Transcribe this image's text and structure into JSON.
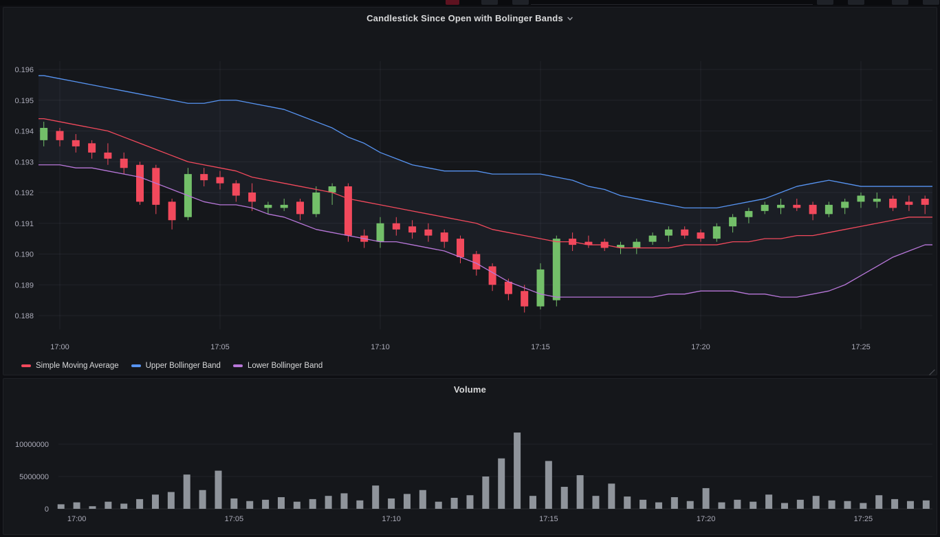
{
  "chart_data": [
    {
      "type": "candlestick",
      "title": "Candlestick Since Open with Bolinger Bands",
      "x_ticks": [
        "17:00",
        "17:05",
        "17:10",
        "17:15",
        "17:20",
        "17:25"
      ],
      "y_ticks": [
        0.188,
        0.189,
        0.19,
        0.191,
        0.192,
        0.193,
        0.194,
        0.195,
        0.196
      ],
      "ylim": [
        0.1875,
        0.1965
      ],
      "grid": true,
      "legend_position": "bottom-left",
      "candle_up_color": "#73bf69",
      "candle_down_color": "#f2495c",
      "band_fill": "rgba(140,165,220,0.055)",
      "candle_format": [
        "time",
        "open",
        "high",
        "low",
        "close"
      ],
      "candles": [
        [
          "16:59:30",
          0.1937,
          0.1943,
          0.1935,
          0.1941
        ],
        [
          "17:00:00",
          0.194,
          0.1941,
          0.1935,
          0.1937
        ],
        [
          "17:00:30",
          0.1937,
          0.1939,
          0.1933,
          0.1935
        ],
        [
          "17:01:00",
          0.1936,
          0.1937,
          0.1931,
          0.1933
        ],
        [
          "17:01:30",
          0.1933,
          0.1936,
          0.1929,
          0.1931
        ],
        [
          "17:02:00",
          0.1931,
          0.1933,
          0.1926,
          0.1928
        ],
        [
          "17:02:30",
          0.1929,
          0.193,
          0.1916,
          0.1917
        ],
        [
          "17:03:00",
          0.1928,
          0.1929,
          0.1913,
          0.1916
        ],
        [
          "17:03:30",
          0.1917,
          0.1918,
          0.1908,
          0.1911
        ],
        [
          "17:04:00",
          0.1912,
          0.1928,
          0.1911,
          0.1926
        ],
        [
          "17:04:30",
          0.1926,
          0.1928,
          0.1922,
          0.1924
        ],
        [
          "17:05:00",
          0.1925,
          0.1927,
          0.1921,
          0.1923
        ],
        [
          "17:05:30",
          0.1923,
          0.1924,
          0.1917,
          0.1919
        ],
        [
          "17:06:00",
          0.192,
          0.1923,
          0.1914,
          0.1917
        ],
        [
          "17:06:30",
          0.1915,
          0.1917,
          0.1913,
          0.1916
        ],
        [
          "17:07:00",
          0.1915,
          0.1918,
          0.1914,
          0.1916
        ],
        [
          "17:07:30",
          0.1917,
          0.1918,
          0.1911,
          0.1913
        ],
        [
          "17:08:00",
          0.1913,
          0.1922,
          0.1912,
          0.192
        ],
        [
          "17:08:30",
          0.192,
          0.1923,
          0.1916,
          0.1922
        ],
        [
          "17:09:00",
          0.1922,
          0.1923,
          0.1904,
          0.1906
        ],
        [
          "17:09:30",
          0.1906,
          0.1908,
          0.1902,
          0.1904
        ],
        [
          "17:10:00",
          0.1904,
          0.1912,
          0.1902,
          0.191
        ],
        [
          "17:10:30",
          0.191,
          0.1912,
          0.1906,
          0.1908
        ],
        [
          "17:11:00",
          0.1909,
          0.1911,
          0.1905,
          0.1907
        ],
        [
          "17:11:30",
          0.1908,
          0.191,
          0.1904,
          0.1906
        ],
        [
          "17:12:00",
          0.1907,
          0.1908,
          0.1902,
          0.1904
        ],
        [
          "17:12:30",
          0.1905,
          0.1906,
          0.1897,
          0.1899
        ],
        [
          "17:13:00",
          0.19,
          0.1901,
          0.1893,
          0.1895
        ],
        [
          "17:13:30",
          0.1896,
          0.1897,
          0.1888,
          0.189
        ],
        [
          "17:14:00",
          0.1891,
          0.1892,
          0.1885,
          0.1887
        ],
        [
          "17:14:30",
          0.1888,
          0.189,
          0.1881,
          0.1883
        ],
        [
          "17:15:00",
          0.1883,
          0.1897,
          0.1882,
          0.1895
        ],
        [
          "17:15:30",
          0.1885,
          0.1906,
          0.1883,
          0.1905
        ],
        [
          "17:16:00",
          0.1905,
          0.1907,
          0.1901,
          0.1903
        ],
        [
          "17:16:30",
          0.1904,
          0.1906,
          0.1902,
          0.1903
        ],
        [
          "17:17:00",
          0.1904,
          0.1905,
          0.1901,
          0.1902
        ],
        [
          "17:17:30",
          0.1902,
          0.1904,
          0.19,
          0.1903
        ],
        [
          "17:18:00",
          0.1902,
          0.1905,
          0.19,
          0.1904
        ],
        [
          "17:18:30",
          0.1904,
          0.1907,
          0.1903,
          0.1906
        ],
        [
          "17:19:00",
          0.1906,
          0.1909,
          0.1904,
          0.1908
        ],
        [
          "17:19:30",
          0.1908,
          0.1909,
          0.1905,
          0.1906
        ],
        [
          "17:20:00",
          0.1907,
          0.1908,
          0.1904,
          0.1905
        ],
        [
          "17:20:30",
          0.1905,
          0.191,
          0.1904,
          0.1909
        ],
        [
          "17:21:00",
          0.1909,
          0.1913,
          0.1907,
          0.1912
        ],
        [
          "17:21:30",
          0.1912,
          0.1915,
          0.191,
          0.1914
        ],
        [
          "17:22:00",
          0.1914,
          0.1917,
          0.1913,
          0.1916
        ],
        [
          "17:22:30",
          0.1915,
          0.1918,
          0.1913,
          0.1916
        ],
        [
          "17:23:00",
          0.1916,
          0.1918,
          0.1914,
          0.1915
        ],
        [
          "17:23:30",
          0.1916,
          0.1917,
          0.1911,
          0.1913
        ],
        [
          "17:24:00",
          0.1913,
          0.1917,
          0.1912,
          0.1916
        ],
        [
          "17:24:30",
          0.1915,
          0.1918,
          0.1913,
          0.1917
        ],
        [
          "17:25:00",
          0.1917,
          0.192,
          0.1915,
          0.1919
        ],
        [
          "17:25:30",
          0.1917,
          0.192,
          0.1915,
          0.1918
        ],
        [
          "17:26:00",
          0.1918,
          0.1919,
          0.1914,
          0.1915
        ],
        [
          "17:26:30",
          0.1917,
          0.1919,
          0.1914,
          0.1916
        ],
        [
          "17:27:00",
          0.1918,
          0.1919,
          0.1913,
          0.1916
        ]
      ],
      "series": [
        {
          "name": "Simple Moving Average",
          "color": "#f2495c",
          "values": [
            0.1944,
            0.1943,
            0.1942,
            0.1941,
            0.194,
            0.1938,
            0.1936,
            0.1934,
            0.1932,
            0.193,
            0.1929,
            0.1928,
            0.1927,
            0.1925,
            0.1924,
            0.1923,
            0.1922,
            0.1921,
            0.192,
            0.1918,
            0.1917,
            0.1916,
            0.1915,
            0.1914,
            0.1913,
            0.1912,
            0.1911,
            0.191,
            0.1908,
            0.1907,
            0.1906,
            0.1905,
            0.1904,
            0.1904,
            0.1903,
            0.1903,
            0.1902,
            0.1902,
            0.1902,
            0.1902,
            0.1903,
            0.1903,
            0.1903,
            0.1904,
            0.1904,
            0.1905,
            0.1905,
            0.1906,
            0.1906,
            0.1907,
            0.1908,
            0.1909,
            0.191,
            0.1911,
            0.1912,
            0.1912
          ]
        },
        {
          "name": "Upper Bollinger Band",
          "color": "#5794f2",
          "values": [
            0.1958,
            0.1957,
            0.1956,
            0.1955,
            0.1954,
            0.1953,
            0.1952,
            0.1951,
            0.195,
            0.1949,
            0.1949,
            0.195,
            0.195,
            0.1949,
            0.1948,
            0.1947,
            0.1945,
            0.1943,
            0.1941,
            0.1938,
            0.1936,
            0.1933,
            0.1931,
            0.1929,
            0.1928,
            0.1927,
            0.1927,
            0.1927,
            0.1926,
            0.1926,
            0.1926,
            0.1926,
            0.1925,
            0.1924,
            0.1922,
            0.1921,
            0.1919,
            0.1918,
            0.1917,
            0.1916,
            0.1915,
            0.1915,
            0.1915,
            0.1916,
            0.1917,
            0.1918,
            0.192,
            0.1922,
            0.1923,
            0.1924,
            0.1923,
            0.1922,
            0.1922,
            0.1922,
            0.1922,
            0.1922
          ]
        },
        {
          "name": "Lower Bollinger Band",
          "color": "#b877d9",
          "values": [
            0.1929,
            0.1929,
            0.1928,
            0.1928,
            0.1927,
            0.1926,
            0.1925,
            0.1923,
            0.1921,
            0.1919,
            0.1917,
            0.1916,
            0.1916,
            0.1915,
            0.1913,
            0.1912,
            0.191,
            0.1908,
            0.1907,
            0.1906,
            0.1905,
            0.1904,
            0.1904,
            0.1903,
            0.1902,
            0.1901,
            0.1899,
            0.1897,
            0.1894,
            0.1891,
            0.1889,
            0.1887,
            0.1886,
            0.1886,
            0.1886,
            0.1886,
            0.1886,
            0.1886,
            0.1886,
            0.1887,
            0.1887,
            0.1888,
            0.1888,
            0.1888,
            0.1887,
            0.1887,
            0.1886,
            0.1886,
            0.1887,
            0.1888,
            0.189,
            0.1893,
            0.1896,
            0.1899,
            0.1901,
            0.1903
          ]
        }
      ]
    },
    {
      "type": "bar",
      "title": "Volume",
      "x_ticks": [
        "17:00",
        "17:05",
        "17:10",
        "17:15",
        "17:20",
        "17:25"
      ],
      "y_ticks": [
        0,
        5000000,
        10000000
      ],
      "ylim": [
        0,
        12500000
      ],
      "grid": true,
      "bar_color": "#8f949b",
      "values": [
        700000,
        1000000,
        400000,
        1100000,
        800000,
        1500000,
        2200000,
        2600000,
        5300000,
        2900000,
        5900000,
        1600000,
        1200000,
        1400000,
        1800000,
        1100000,
        1500000,
        2000000,
        2400000,
        1300000,
        3600000,
        1600000,
        2300000,
        2900000,
        1100000,
        1700000,
        2100000,
        5000000,
        7800000,
        11800000,
        2000000,
        7400000,
        3400000,
        5200000,
        2000000,
        3900000,
        1900000,
        1400000,
        1000000,
        1800000,
        1200000,
        3200000,
        1000000,
        1400000,
        1100000,
        2200000,
        900000,
        1400000,
        2000000,
        1300000,
        1200000,
        900000,
        2100000,
        1500000,
        1200000,
        1300000
      ]
    }
  ]
}
